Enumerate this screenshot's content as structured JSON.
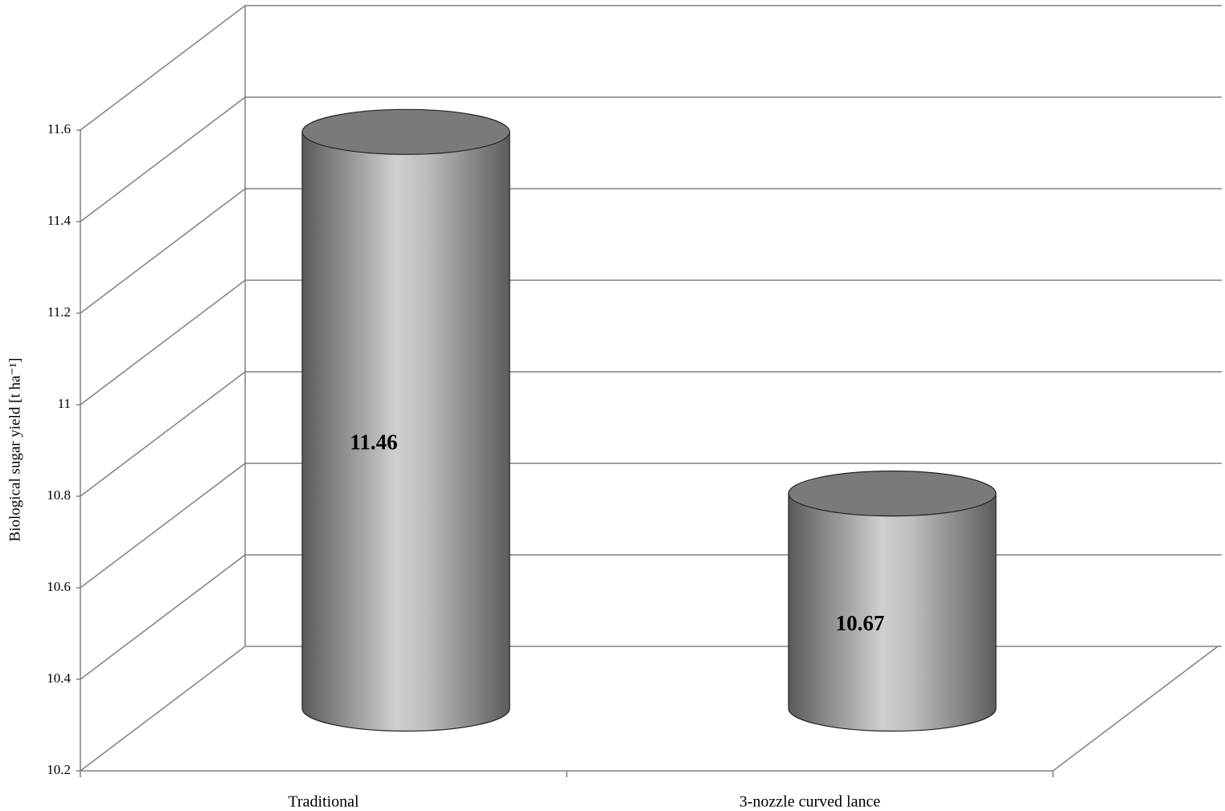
{
  "chart_data": {
    "type": "cylinder",
    "y_label": "Biological sugar yield [t ha⁻¹]",
    "categories": [
      "Traditional",
      "3-nozzle curved lance"
    ],
    "values": [
      11.46,
      10.67
    ],
    "color": "#9a9a9a",
    "ylim": [
      10.2,
      11.6
    ],
    "yticks": [
      10.2,
      10.4,
      10.6,
      10.8,
      11,
      11.2,
      11.4,
      11.6
    ],
    "grid": true
  }
}
